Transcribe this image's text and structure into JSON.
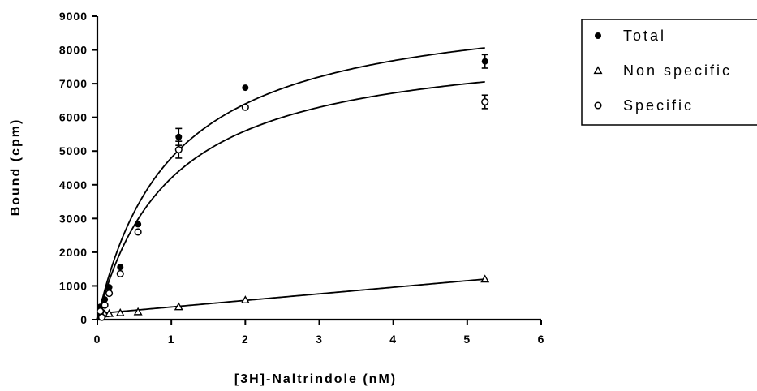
{
  "chart_data": {
    "type": "scatter",
    "title": "",
    "xlabel": "[3H]-Naltrindole (nM)",
    "ylabel": "Bound (cpm)",
    "xlim": [
      0,
      6
    ],
    "ylim": [
      0,
      9000
    ],
    "x_ticks": [
      0,
      1,
      2,
      3,
      4,
      5,
      6
    ],
    "y_ticks": [
      0,
      1000,
      2000,
      3000,
      4000,
      5000,
      6000,
      7000,
      8000,
      9000
    ],
    "grid": false,
    "legend_position": "top-right",
    "series": [
      {
        "name": "Total",
        "marker": "filled-circle",
        "x": [
          0.04,
          0.06,
          0.1,
          0.16,
          0.31,
          0.55,
          1.1,
          2.0,
          5.24
        ],
        "y": [
          380,
          230,
          600,
          960,
          1560,
          2830,
          5420,
          6880,
          7660
        ],
        "error": [
          0,
          0,
          0,
          0,
          0,
          0,
          250,
          0,
          200
        ],
        "fit": {
          "model": "one-site",
          "bmax": 9600,
          "kd": 1.0
        }
      },
      {
        "name": "Non specific",
        "marker": "open-triangle",
        "x": [
          0.04,
          0.06,
          0.1,
          0.16,
          0.31,
          0.55,
          1.1,
          2.0,
          5.24
        ],
        "y": [
          130,
          160,
          170,
          180,
          200,
          230,
          380,
          580,
          1200
        ],
        "error": [
          0,
          0,
          0,
          0,
          0,
          0,
          0,
          0,
          0
        ],
        "fit": {
          "model": "linear",
          "slope": 195,
          "intercept": 180
        }
      },
      {
        "name": "Specific",
        "marker": "open-circle",
        "x": [
          0.04,
          0.06,
          0.1,
          0.16,
          0.31,
          0.55,
          1.1,
          2.0,
          5.24
        ],
        "y": [
          250,
          70,
          430,
          780,
          1360,
          2600,
          5040,
          6300,
          6460
        ],
        "error": [
          0,
          0,
          0,
          0,
          0,
          0,
          250,
          0,
          200
        ],
        "fit": {
          "model": "one-site",
          "bmax": 8400,
          "kd": 1.0
        }
      }
    ]
  }
}
